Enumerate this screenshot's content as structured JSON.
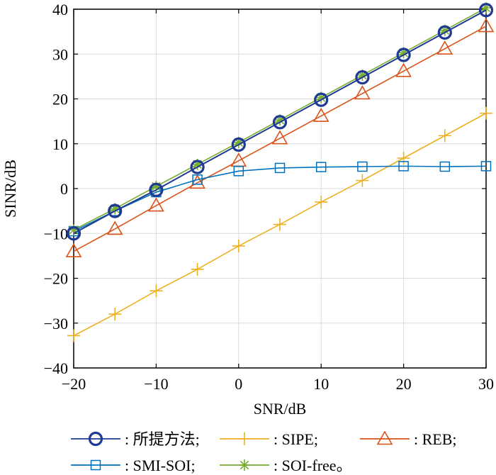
{
  "chart_data": {
    "type": "line",
    "title": "",
    "xlabel": "SNR/dB",
    "ylabel": "SINR/dB",
    "xlim": [
      -20,
      30
    ],
    "ylim": [
      -40,
      40
    ],
    "xticks": [
      -20,
      -10,
      0,
      10,
      20,
      30
    ],
    "yticks": [
      -40,
      -30,
      -20,
      -10,
      0,
      10,
      20,
      30,
      40
    ],
    "xtick_labels": [
      "−20",
      "−10",
      "0",
      "10",
      "20",
      "30"
    ],
    "ytick_labels": [
      "−40",
      "−30",
      "−20",
      "−10",
      "0",
      "10",
      "20",
      "30",
      "40"
    ],
    "grid": true,
    "x": [
      -20,
      -15,
      -10,
      -5,
      0,
      5,
      10,
      15,
      20,
      25,
      30
    ],
    "series": [
      {
        "name": ": 所提方法;",
        "color": "#1f3a93",
        "marker": "circle",
        "values": [
          -10,
          -5,
          -0.3,
          4.8,
          9.8,
          14.8,
          19.8,
          24.8,
          29.8,
          34.8,
          39.8
        ]
      },
      {
        "name": ": SIPE;",
        "color": "#EDB120",
        "marker": "plus",
        "values": [
          -32.8,
          -28,
          -22.8,
          -18,
          -12.8,
          -8,
          -3,
          1.8,
          6.8,
          11.8,
          16.8
        ]
      },
      {
        "name": ": REB;",
        "color": "#D95319",
        "marker": "triangle",
        "values": [
          -14,
          -9,
          -3.8,
          1.3,
          6.2,
          11.2,
          16.2,
          21.2,
          26.2,
          31.2,
          36.2
        ]
      },
      {
        "name": ": SMI-SOI;",
        "color": "#0072BD",
        "marker": "square",
        "values": [
          -9.5,
          -5,
          -0.8,
          2,
          3.9,
          4.6,
          4.8,
          4.9,
          5,
          4.9,
          5
        ]
      },
      {
        "name": ": SOI-free。",
        "color": "#77AC30",
        "marker": "asterisk",
        "values": [
          -9.2,
          -4.5,
          0.5,
          5.4,
          10.3,
          15.3,
          20.3,
          25.3,
          30.3,
          35.3,
          40.3
        ]
      }
    ]
  }
}
